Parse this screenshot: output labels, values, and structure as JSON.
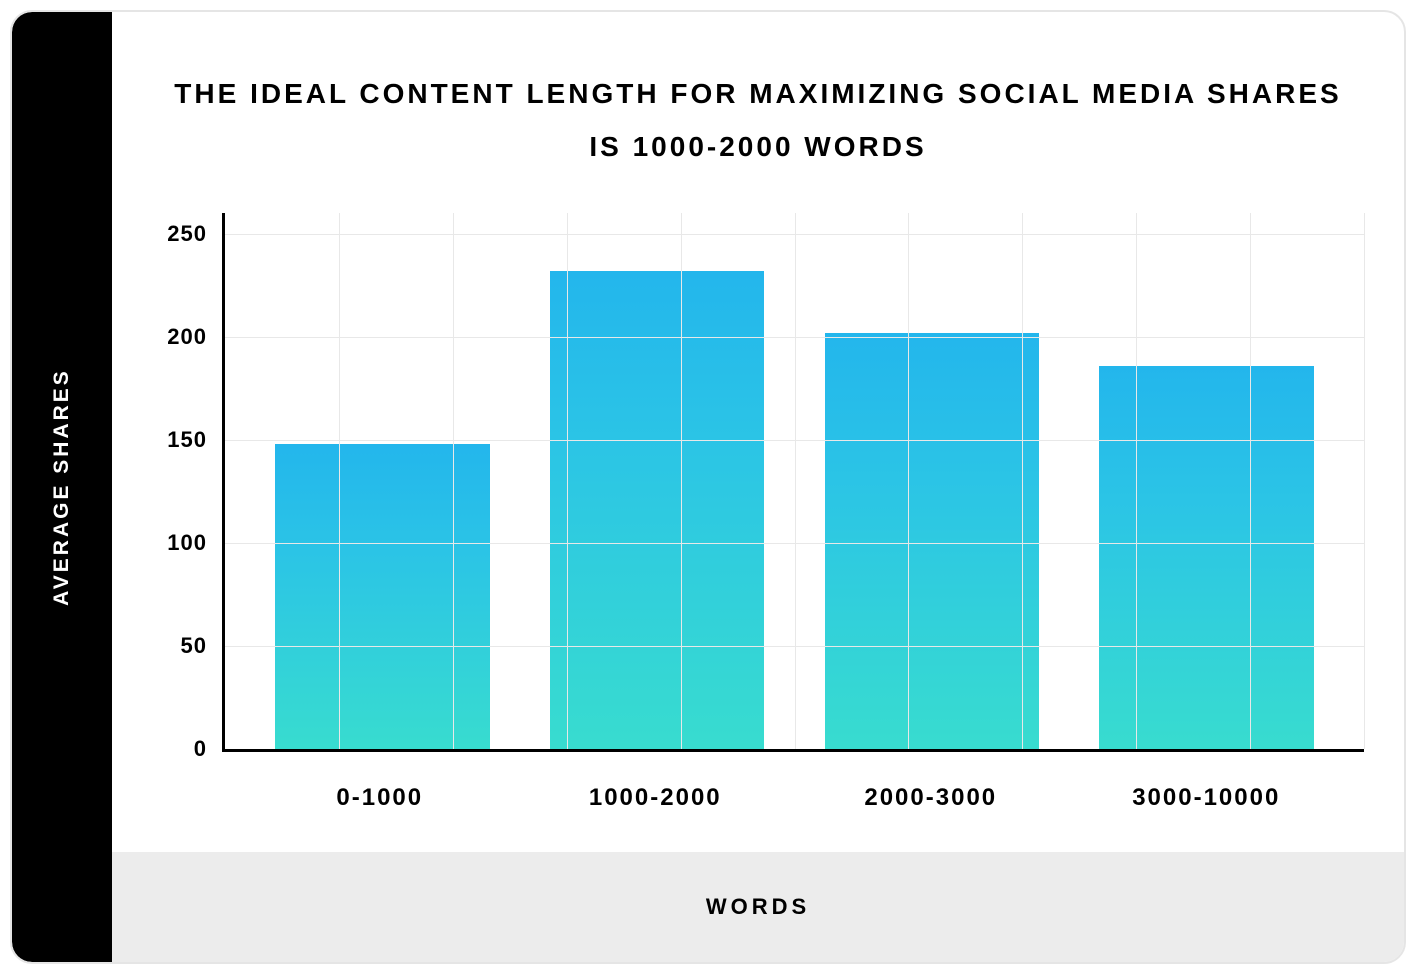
{
  "chart": {
    "type": "bar",
    "title": "THE IDEAL CONTENT LENGTH FOR MAXIMIZING SOCIAL MEDIA SHARES IS 1000-2000 WORDS",
    "title_fontsize": 28,
    "title_letter_spacing": 3,
    "y_axis": {
      "label": "AVERAGE SHARES",
      "label_color": "#ffffff",
      "label_fontsize": 21,
      "min": 0,
      "max": 260,
      "ticks": [
        0,
        50,
        100,
        150,
        200,
        250
      ]
    },
    "x_axis": {
      "label": "WORDS",
      "label_fontsize": 22,
      "categories": [
        "0-1000",
        "1000-2000",
        "2000-3000",
        "3000-10000"
      ]
    },
    "values": [
      148,
      232,
      202,
      186
    ],
    "bar_gradient_top": "#23b6ec",
    "bar_gradient_mid": "#2bc4e6",
    "bar_gradient_bottom": "#38dccf",
    "bar_width_ratio": 0.78,
    "grid": {
      "color": "#e8e8e8",
      "v_lines": 10,
      "h_from_ticks": true
    },
    "axis_line_color": "#000000",
    "axis_line_width": 3,
    "background_color": "#ffffff",
    "sidebar_color": "#000000",
    "bottom_strip_color": "#ececec",
    "card_border_color": "#e5e5e5",
    "card_border_radius": 22
  }
}
